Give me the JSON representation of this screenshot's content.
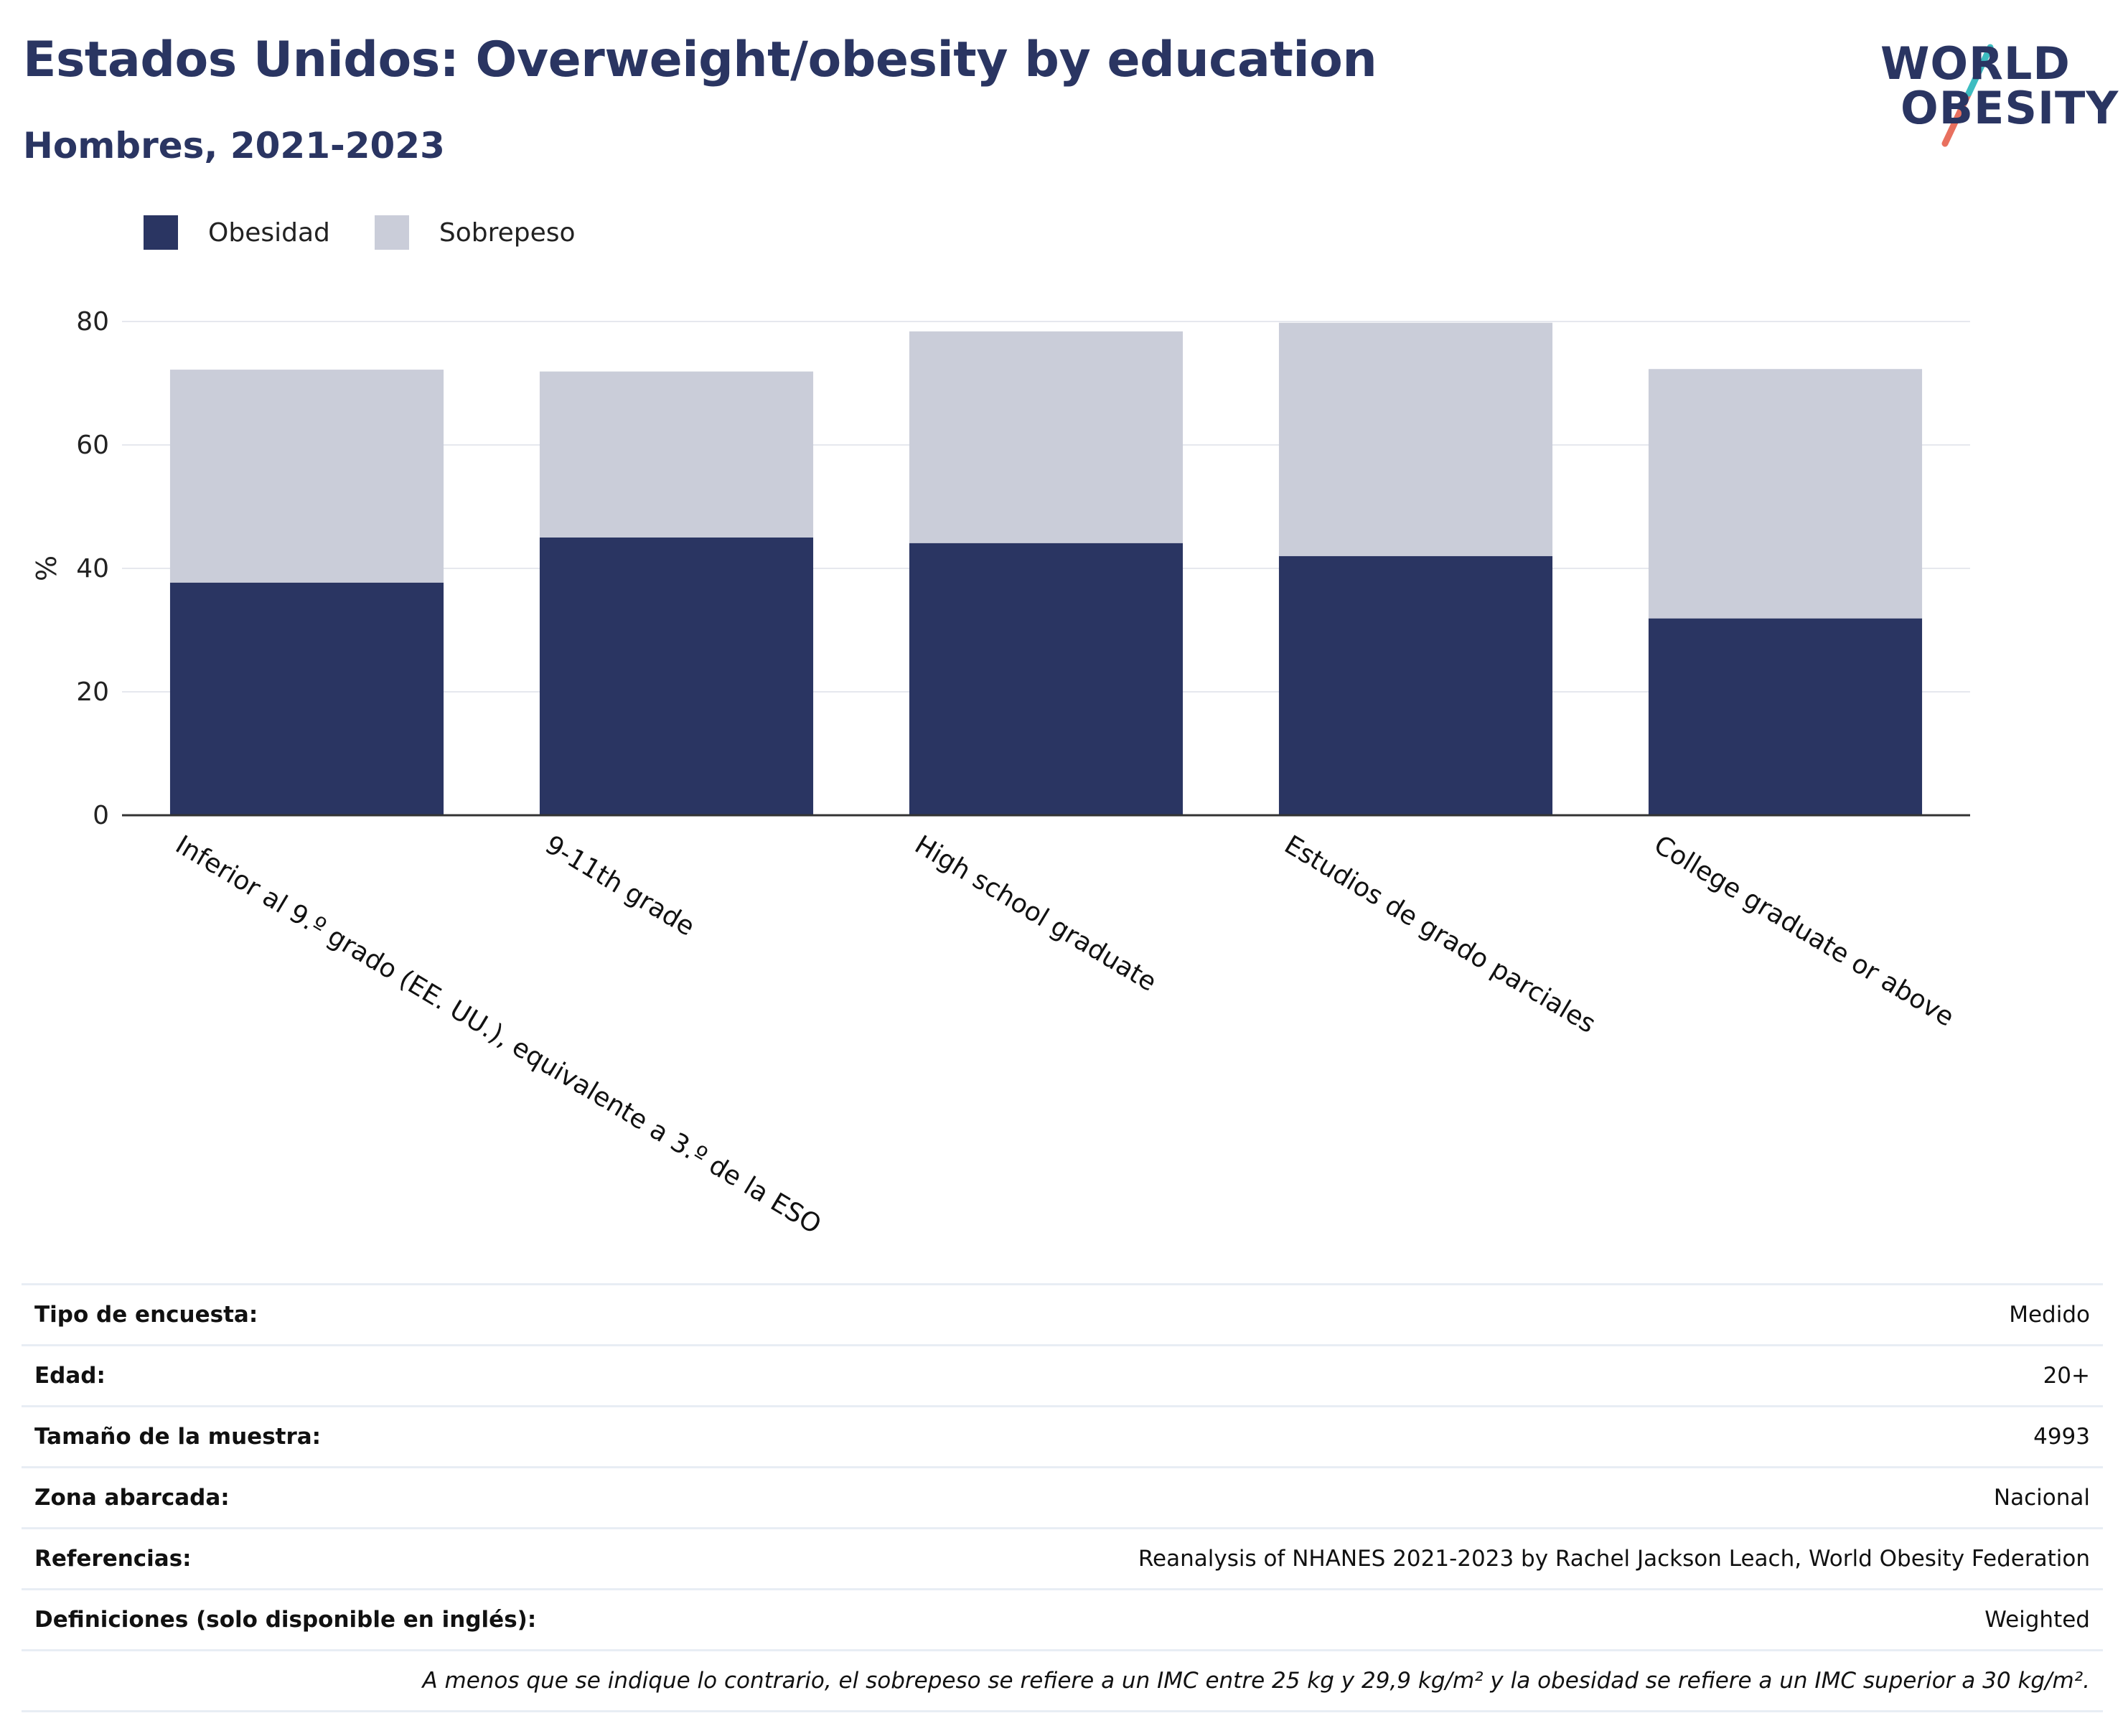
{
  "header": {
    "title": "Estados Unidos: Overweight/obesity by education",
    "subtitle": "Hombres, 2021-2023"
  },
  "logo": {
    "line1": "WORLD",
    "line2": "OBESITY",
    "colors": {
      "text": "#2a3562",
      "slash_top": "#3dbcc0",
      "slash_bottom": "#e8705f"
    }
  },
  "legend": [
    {
      "label": "Obesidad",
      "color": "#2a3562"
    },
    {
      "label": "Sobrepeso",
      "color": "#cacdd9"
    }
  ],
  "chart_data": {
    "type": "bar",
    "stacked": true,
    "categories": [
      "Inferior al 9.º grado (EE. UU.), equivalente a 3.º de la ESO",
      "9-11th grade",
      "High school graduate",
      "Estudios de grado parciales",
      "College graduate or above"
    ],
    "series": [
      {
        "name": "Obesidad",
        "color": "#2a3562",
        "values": [
          37.7,
          45.0,
          44.1,
          42.0,
          31.9
        ]
      },
      {
        "name": "Sobrepeso",
        "color": "#cacdd9",
        "values": [
          34.5,
          26.9,
          34.3,
          37.8,
          40.4
        ]
      }
    ],
    "ylabel": "%",
    "ylim": [
      0,
      80
    ],
    "yticks": [
      0,
      20,
      40,
      60,
      80
    ],
    "grid": true,
    "legend_position": "top-left"
  },
  "meta": {
    "rows": [
      {
        "label": "Tipo de encuesta:",
        "value": "Medido"
      },
      {
        "label": "Edad:",
        "value": "20+"
      },
      {
        "label": "Tamaño de la muestra:",
        "value": "4993"
      },
      {
        "label": "Zona abarcada:",
        "value": "Nacional"
      },
      {
        "label": "Referencias:",
        "value": "Reanalysis of NHANES 2021-2023 by Rachel Jackson Leach, World Obesity Federation"
      },
      {
        "label": "Definiciones (solo disponible en inglés):",
        "value": "Weighted"
      }
    ],
    "note": "A menos que se indique lo contrario, el sobrepeso se refiere a un IMC entre 25 kg y 29,9 kg/m² y la obesidad se refiere a un IMC superior a 30 kg/m²."
  }
}
